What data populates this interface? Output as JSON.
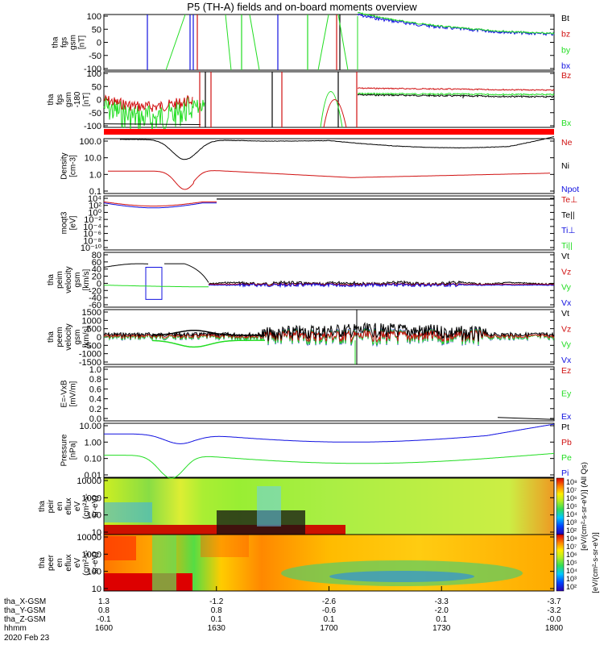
{
  "title": "P5 (TH-A) fields and on-board moments overview",
  "colors": {
    "black": "#000000",
    "red": "#d01010",
    "green": "#22dd22",
    "blue": "#1010e0"
  },
  "chart_data": [
    {
      "type": "line",
      "ylabel": [
        "tha",
        "fgs",
        "gsm",
        "[nT]"
      ],
      "yticks": [
        "100",
        "50",
        "0",
        "-50",
        "-100"
      ],
      "ylim": [
        -100,
        100
      ],
      "legend": [
        {
          "label": "Bt",
          "color": "#000000"
        },
        {
          "label": "bz",
          "color": "#d01010"
        },
        {
          "label": "by",
          "color": "#22dd22"
        },
        {
          "label": "bx",
          "color": "#1010e0"
        }
      ]
    },
    {
      "type": "line",
      "ylabel": [
        "tha",
        "fgs",
        "gsm",
        "-180",
        "[nT]"
      ],
      "yticks": [
        "100",
        "50",
        "0",
        "-50",
        "-100"
      ],
      "ylim": [
        -120,
        100
      ],
      "legend": [
        {
          "label": "Bz",
          "color": "#d01010"
        },
        {
          "label": "Bx",
          "color": "#22dd22"
        }
      ]
    },
    {
      "type": "line",
      "ylabel": [
        "Density",
        "[cm-3]"
      ],
      "yticks": [
        "100.0",
        "10.0",
        "1.0",
        "0.1"
      ],
      "scale": "log",
      "legend": [
        {
          "label": "Ne",
          "color": "#d01010"
        },
        {
          "label": "Ni",
          "color": "#000000"
        },
        {
          "label": "Npot",
          "color": "#1010e0"
        }
      ]
    },
    {
      "type": "line",
      "ylabel": [
        "moqt3",
        "[eV]"
      ],
      "yticks": [
        "10⁴",
        "10²",
        "10⁰",
        "10⁻²",
        "10⁻⁴",
        "10⁻⁶",
        "10⁻⁸",
        "10⁻¹⁰"
      ],
      "scale": "log",
      "legend": [
        {
          "label": "Te⊥",
          "color": "#d01010"
        },
        {
          "label": "Te||",
          "color": "#000000"
        },
        {
          "label": "Ti⊥",
          "color": "#1010e0"
        },
        {
          "label": "Ti||",
          "color": "#22dd22"
        }
      ]
    },
    {
      "type": "line",
      "ylabel": [
        "tha",
        "peim",
        "velocity",
        "gsm",
        "[km/s]"
      ],
      "yticks": [
        "80",
        "60",
        "40",
        "20",
        "0",
        "-20",
        "-40",
        "-60"
      ],
      "ylim": [
        -60,
        80
      ],
      "legend": [
        {
          "label": "Vt",
          "color": "#000000"
        },
        {
          "label": "Vz",
          "color": "#d01010"
        },
        {
          "label": "Vy",
          "color": "#22dd22"
        },
        {
          "label": "Vx",
          "color": "#1010e0"
        }
      ]
    },
    {
      "type": "line",
      "ylabel": [
        "tha",
        "peem",
        "velocity",
        "gsm",
        "[km/s]"
      ],
      "yticks": [
        "1500",
        "1000",
        "500",
        "0",
        "-500",
        "-1000",
        "-1500"
      ],
      "ylim": [
        -1500,
        1500
      ],
      "legend": [
        {
          "label": "Vt",
          "color": "#000000"
        },
        {
          "label": "Vz",
          "color": "#d01010"
        },
        {
          "label": "Vy",
          "color": "#22dd22"
        },
        {
          "label": "Vx",
          "color": "#1010e0"
        }
      ]
    },
    {
      "type": "line",
      "ylabel": [
        "E=-VxB",
        "[mV/m]"
      ],
      "yticks": [
        "1.0",
        "0.8",
        "0.6",
        "0.4",
        "0.2",
        "0.0"
      ],
      "ylim": [
        0,
        1
      ],
      "legend": [
        {
          "label": "Ez",
          "color": "#d01010"
        },
        {
          "label": "Ey",
          "color": "#22dd22"
        },
        {
          "label": "Ex",
          "color": "#1010e0"
        }
      ]
    },
    {
      "type": "line",
      "ylabel": [
        "Pressure",
        "[nPa]"
      ],
      "yticks": [
        "10.00",
        "1.00",
        "0.10",
        "0.01"
      ],
      "scale": "log",
      "legend": [
        {
          "label": "Pt",
          "color": "#000000"
        },
        {
          "label": "Pb",
          "color": "#d01010"
        },
        {
          "label": "Pe",
          "color": "#22dd22"
        },
        {
          "label": "Pi",
          "color": "#1010e0"
        }
      ]
    },
    {
      "type": "heatmap",
      "ylabel": [
        "tha",
        "peir",
        "en",
        "eflux",
        "eV",
        "(cm²-s-",
        "sr-eV)"
      ],
      "yticks": [
        "10000",
        "1000",
        "100",
        "10"
      ],
      "scale": "log",
      "colorbar_label": "[eV/(cm²-s-sr-eV)] (All Qs)",
      "colorbar_ticks": [
        "10⁸",
        "10⁷",
        "10⁶",
        "10⁵",
        "10⁴",
        "10³",
        "10²"
      ]
    },
    {
      "type": "heatmap",
      "ylabel": [
        "tha",
        "peer",
        "en",
        "eflux",
        "eV",
        "(cm²-s-",
        "sr-eV)"
      ],
      "yticks": [
        "10000",
        "1000",
        "100",
        "10"
      ],
      "scale": "log",
      "colorbar_label": "[eV/(cm²-s-sr-eV)]",
      "colorbar_ticks": [
        "10⁸",
        "10⁷",
        "10⁶",
        "10⁵",
        "10⁴",
        "10³",
        "10²"
      ]
    }
  ],
  "x_axis": {
    "rows": [
      {
        "label": "tha_X-GSM",
        "values": [
          "1.3",
          "-1.2",
          "-2.6",
          "-3.3",
          "-3.7"
        ]
      },
      {
        "label": "tha_Y-GSM",
        "values": [
          "0.8",
          "0.8",
          "-0.6",
          "-2.0",
          "-3.2"
        ]
      },
      {
        "label": "tha_Z-GSM",
        "values": [
          "-0.1",
          "0.1",
          "0.1",
          "0.1",
          "-0.0"
        ]
      },
      {
        "label": "hhmm",
        "values": [
          "1600",
          "1630",
          "1700",
          "1730",
          "1800"
        ]
      }
    ],
    "date": "2020 Feb 23"
  }
}
